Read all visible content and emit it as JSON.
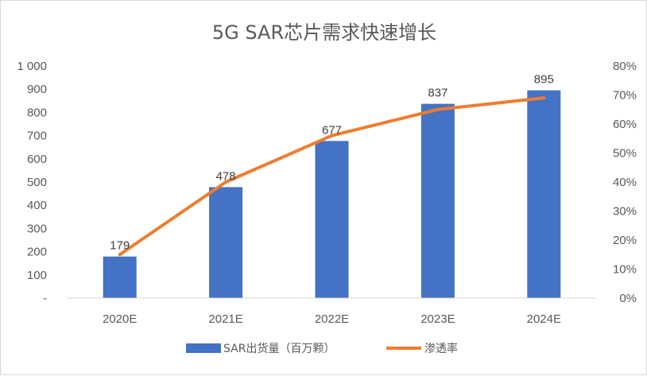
{
  "chart_data": {
    "type": "bar",
    "title": "5G SAR芯片需求快速增长",
    "categories": [
      "2020E",
      "2021E",
      "2022E",
      "2023E",
      "2024E"
    ],
    "series": [
      {
        "name": "SAR出货量（百万颗）",
        "type": "bar",
        "axis": "left",
        "color": "#4472c4",
        "values": [
          179,
          478,
          677,
          837,
          895
        ],
        "data_labels": [
          "179",
          "478",
          "677",
          "837",
          "895"
        ]
      },
      {
        "name": "渗透率",
        "type": "line",
        "axis": "right",
        "color": "#ed7d31",
        "values": [
          0.15,
          0.4,
          0.56,
          0.65,
          0.69
        ]
      }
    ],
    "y_left": {
      "range": [
        0,
        1000
      ],
      "tick_values": [
        0,
        100,
        200,
        300,
        400,
        500,
        600,
        700,
        800,
        900,
        1000
      ],
      "tick_labels": [
        "-",
        "100",
        "200",
        "300",
        "400",
        "500",
        "600",
        "700",
        "800",
        "900",
        "1 000"
      ]
    },
    "y_right": {
      "range": [
        0,
        0.8
      ],
      "tick_values": [
        0,
        0.1,
        0.2,
        0.3,
        0.4,
        0.5,
        0.6,
        0.7,
        0.8
      ],
      "tick_labels": [
        "0%",
        "10%",
        "20%",
        "30%",
        "40%",
        "50%",
        "60%",
        "70%",
        "80%"
      ]
    },
    "grid": false,
    "legend": "bottom"
  }
}
